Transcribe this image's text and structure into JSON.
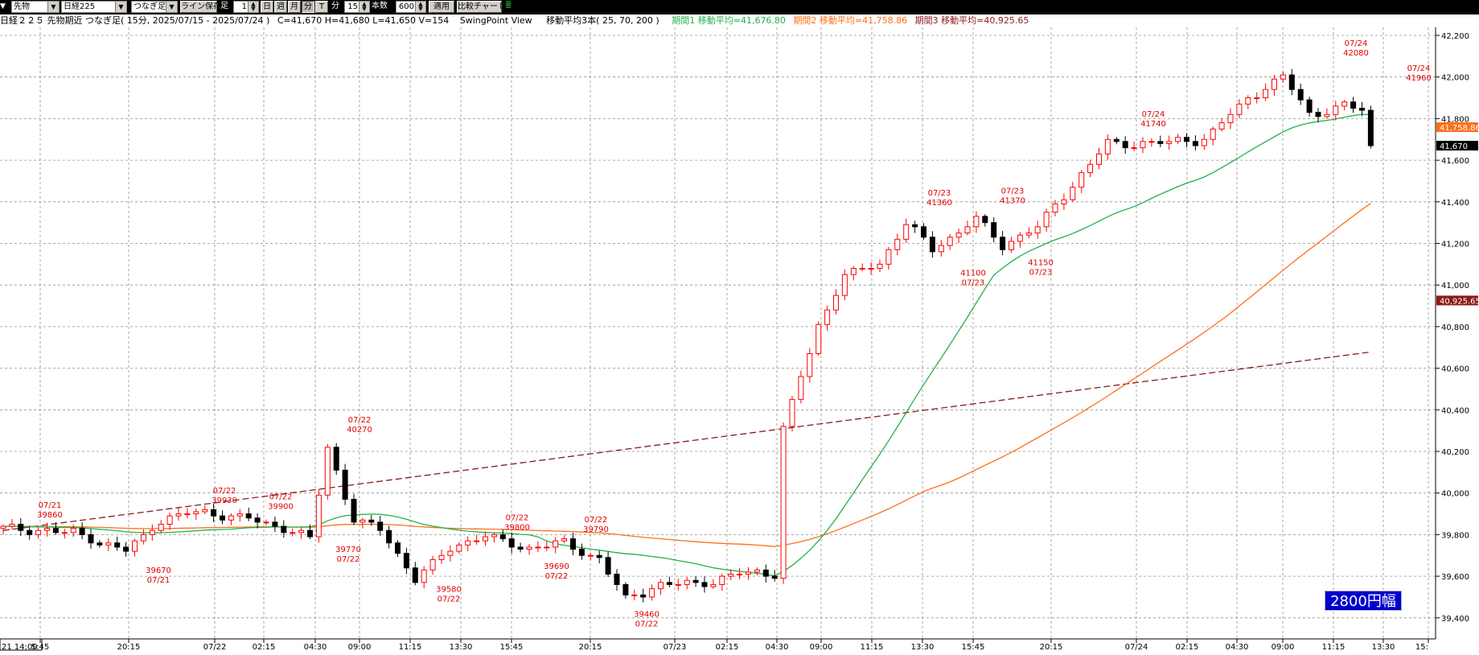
{
  "toolbar": {
    "market": "先物",
    "index": "日経225",
    "chart_kind": "つなぎ足",
    "save_line": "ライン保存",
    "bar_label": "足",
    "bar_value": "1",
    "periods": [
      "日",
      "週",
      "月",
      "分",
      "T"
    ],
    "active_period": "分",
    "minute_label": "分",
    "minute_value": "15",
    "count_label": "本数",
    "count_value": "600",
    "apply": "適用",
    "compare": "比較チャート"
  },
  "header": {
    "title": "日経２２５ 先物期近 つなぎ足( 15分, 2025/07/15 - 2025/07/24 )",
    "ohlcv": "C=41,670 H=41,680 L=41,650 V=154",
    "view": "SwingPoint View",
    "ma_desc": "移動平均3本( 25, 70, 200 )",
    "ma1": "期間1 移動平均=41,676.80",
    "ma2": "期間2 移動平均=41,758.86",
    "ma3": "期間3 移動平均=40,925.65"
  },
  "colors": {
    "up": "#ff0000",
    "down": "#000000",
    "ma1": "#22b14c",
    "ma2": "#ff6f1a",
    "ma3": "#8b1a1a",
    "grid": "#909090",
    "swing": "#e00000",
    "range_bg": "#0000cc"
  },
  "range_badge": "2800円幅",
  "y_badges": [
    "41,758.86",
    "41,670",
    "40,925.65"
  ],
  "x_labels": [
    "21 14:00",
    "5:45",
    "20:15",
    "07/22",
    "02:15",
    "04:30",
    "09:00",
    "11:15",
    "13:30",
    "15:45",
    "20:15",
    "07/23",
    "02:15",
    "04:30",
    "09:00",
    "11:15",
    "13:30",
    "15:45",
    "20:15",
    "07/24",
    "02:15",
    "04:30",
    "09:00",
    "11:15",
    "13:30",
    "15:"
  ],
  "chart_data": {
    "type": "candlestick",
    "y_ticks": [
      "42,200",
      "42,000",
      "41,800",
      "41,600",
      "41,400",
      "41,200",
      "41,000",
      "40,800",
      "40,600",
      "40,400",
      "40,200",
      "40,000",
      "39,800",
      "39,600",
      "39,400"
    ],
    "ylim": [
      39360,
      42240
    ],
    "swing_points": [
      {
        "type": "high",
        "date": "07/21",
        "value": "39860"
      },
      {
        "type": "low",
        "date": "07/21",
        "value": "39670"
      },
      {
        "type": "high",
        "date": "07/22",
        "value": "39930"
      },
      {
        "type": "high",
        "date": "07/22",
        "value": "39900"
      },
      {
        "type": "high",
        "date": "07/22",
        "value": "40270"
      },
      {
        "type": "low",
        "date": "07/22",
        "value": "39770"
      },
      {
        "type": "low",
        "date": "07/22",
        "value": "39580"
      },
      {
        "type": "high",
        "date": "07/22",
        "value": "39800"
      },
      {
        "type": "low",
        "date": "07/22",
        "value": "39690"
      },
      {
        "type": "high",
        "date": "07/22",
        "value": "39790"
      },
      {
        "type": "low",
        "date": "07/22",
        "value": "39460"
      },
      {
        "type": "high",
        "date": "07/23",
        "value": "41360"
      },
      {
        "type": "low",
        "date": "07/23",
        "value": "41100"
      },
      {
        "type": "high",
        "date": "07/23",
        "value": "41370"
      },
      {
        "type": "low",
        "date": "07/23",
        "value": "41150"
      },
      {
        "type": "high",
        "date": "07/24",
        "value": "41740"
      },
      {
        "type": "high",
        "date": "07/24",
        "value": "42080"
      },
      {
        "type": "high",
        "date": "07/24",
        "value": "41960"
      }
    ],
    "ma_series": [
      {
        "name": "期間1",
        "period": 25,
        "last": 41676.8
      },
      {
        "name": "期間2",
        "period": 70,
        "last": 41758.86
      },
      {
        "name": "期間3",
        "period": 200,
        "last": 40925.65
      }
    ],
    "last": {
      "close": 41670,
      "high": 41680,
      "low": 41650,
      "volume": 154
    },
    "path_knots": [
      [
        0,
        39830
      ],
      [
        8,
        39810
      ],
      [
        14,
        39720
      ],
      [
        18,
        39870
      ],
      [
        22,
        39910
      ],
      [
        28,
        39880
      ],
      [
        32,
        39830
      ],
      [
        35,
        39780
      ],
      [
        37,
        40220
      ],
      [
        40,
        39870
      ],
      [
        43,
        39830
      ],
      [
        47,
        39580
      ],
      [
        51,
        39740
      ],
      [
        55,
        39790
      ],
      [
        60,
        39730
      ],
      [
        64,
        39760
      ],
      [
        68,
        39680
      ],
      [
        71,
        39490
      ],
      [
        75,
        39560
      ],
      [
        80,
        39570
      ],
      [
        85,
        39620
      ],
      [
        88,
        39610
      ],
      [
        89,
        40310
      ],
      [
        93,
        40800
      ],
      [
        96,
        41050
      ],
      [
        100,
        41100
      ],
      [
        103,
        41300
      ],
      [
        106,
        41170
      ],
      [
        111,
        41320
      ],
      [
        114,
        41190
      ],
      [
        118,
        41280
      ],
      [
        122,
        41480
      ],
      [
        126,
        41680
      ],
      [
        131,
        41680
      ],
      [
        137,
        41700
      ],
      [
        142,
        41900
      ],
      [
        146,
        42000
      ],
      [
        149,
        41820
      ],
      [
        153,
        41860
      ],
      [
        156,
        41840
      ]
    ]
  }
}
